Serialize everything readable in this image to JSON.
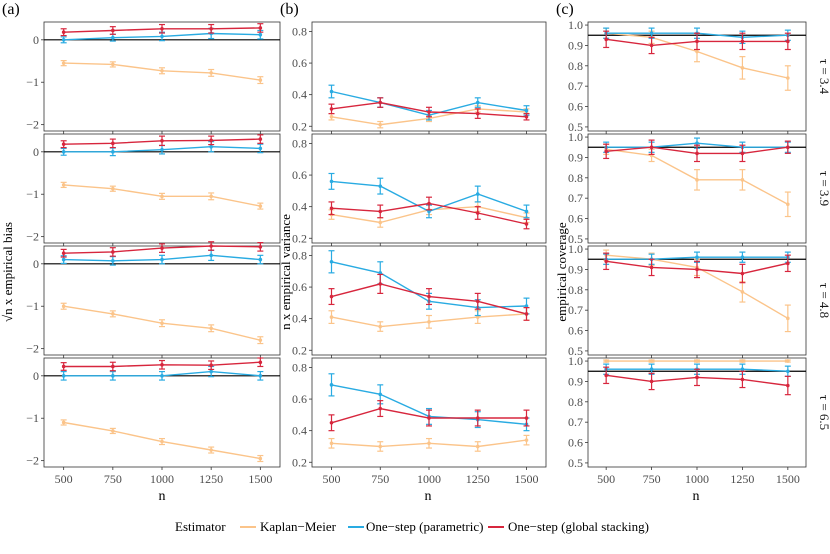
{
  "chart_data": {
    "type": "line",
    "panel_labels": [
      "(a)",
      "(b)",
      "(c)"
    ],
    "row_labels": [
      "τ = 3.4",
      "τ = 3.9",
      "τ = 4.8",
      "τ = 6.5"
    ],
    "x": [
      500,
      750,
      1000,
      1250,
      1500
    ],
    "x_ticks": [
      "500",
      "750",
      "1000",
      "1250",
      "1500"
    ],
    "xlabel": "n",
    "columns": [
      {
        "ylabel": "√n x empirical bias",
        "ylim": [
          -2.15,
          0.42
        ],
        "ticks": [
          0,
          -1,
          -2
        ],
        "tick_labels": [
          "0",
          "−1",
          "−2"
        ],
        "ref_line": 0
      },
      {
        "ylabel": "n x empirical variance",
        "ylim": [
          0.17,
          0.86
        ],
        "ticks": [
          0.2,
          0.4,
          0.6,
          0.8
        ],
        "tick_labels": [
          "0.2",
          "0.4",
          "0.6",
          "0.8"
        ],
        "ref_line": null
      },
      {
        "ylabel": "empirical coverage",
        "ylim": [
          0.48,
          1.015
        ],
        "ticks": [
          0.5,
          0.6,
          0.7,
          0.8,
          0.9,
          1.0
        ],
        "tick_labels": [
          "0.5",
          "0.6",
          "0.7",
          "0.8",
          "0.9",
          "1.0"
        ],
        "ref_line": 0.95
      }
    ],
    "series_info": [
      {
        "name": "Kaplan−Meier",
        "color": "#fbc48a"
      },
      {
        "name": "One−step (parametric)",
        "color": "#29abe2"
      },
      {
        "name": "One−step (global stacking)",
        "color": "#d7263d"
      }
    ],
    "legend": {
      "title": "Estimator",
      "position": "bottom"
    },
    "panels": [
      [
        {
          "series": [
            {
              "values": [
                -0.55,
                -0.58,
                -0.73,
                -0.78,
                -0.95
              ],
              "err": [
                0.06,
                0.06,
                0.07,
                0.08,
                0.08
              ]
            },
            {
              "values": [
                0.0,
                0.05,
                0.08,
                0.15,
                0.12
              ],
              "err": [
                0.07,
                0.08,
                0.1,
                0.12,
                0.1
              ]
            },
            {
              "values": [
                0.18,
                0.22,
                0.26,
                0.26,
                0.28
              ],
              "err": [
                0.08,
                0.09,
                0.1,
                0.1,
                0.1
              ]
            }
          ]
        },
        {
          "series": [
            {
              "values": [
                0.26,
                0.21,
                0.25,
                0.31,
                0.29
              ],
              "err": [
                0.02,
                0.02,
                0.02,
                0.02,
                0.02
              ]
            },
            {
              "values": [
                0.42,
                0.35,
                0.27,
                0.35,
                0.3
              ],
              "err": [
                0.04,
                0.03,
                0.03,
                0.03,
                0.03
              ]
            },
            {
              "values": [
                0.31,
                0.35,
                0.29,
                0.28,
                0.26
              ],
              "err": [
                0.03,
                0.03,
                0.03,
                0.03,
                0.02
              ]
            }
          ]
        },
        {
          "series": [
            {
              "values": [
                0.96,
                0.94,
                0.87,
                0.79,
                0.74
              ],
              "err": [
                0.025,
                0.03,
                0.05,
                0.055,
                0.06
              ]
            },
            {
              "values": [
                0.96,
                0.96,
                0.96,
                0.94,
                0.95
              ],
              "err": [
                0.025,
                0.025,
                0.025,
                0.03,
                0.025
              ]
            },
            {
              "values": [
                0.93,
                0.9,
                0.92,
                0.92,
                0.92
              ],
              "err": [
                0.04,
                0.04,
                0.04,
                0.04,
                0.04
              ]
            }
          ]
        }
      ],
      [
        {
          "series": [
            {
              "values": [
                -0.78,
                -0.87,
                -1.05,
                -1.05,
                -1.28
              ],
              "err": [
                0.06,
                0.06,
                0.07,
                0.08,
                0.07
              ]
            },
            {
              "values": [
                0.0,
                0.0,
                0.05,
                0.12,
                0.08
              ],
              "err": [
                0.08,
                0.09,
                0.1,
                0.12,
                0.1
              ]
            },
            {
              "values": [
                0.18,
                0.2,
                0.26,
                0.27,
                0.3
              ],
              "err": [
                0.08,
                0.1,
                0.11,
                0.1,
                0.1
              ]
            }
          ]
        },
        {
          "series": [
            {
              "values": [
                0.35,
                0.3,
                0.38,
                0.4,
                0.33
              ],
              "err": [
                0.03,
                0.03,
                0.03,
                0.03,
                0.03
              ]
            },
            {
              "values": [
                0.56,
                0.53,
                0.37,
                0.48,
                0.37
              ],
              "err": [
                0.05,
                0.05,
                0.04,
                0.05,
                0.04
              ]
            },
            {
              "values": [
                0.39,
                0.37,
                0.42,
                0.36,
                0.29
              ],
              "err": [
                0.04,
                0.04,
                0.04,
                0.04,
                0.03
              ]
            }
          ]
        },
        {
          "series": [
            {
              "values": [
                0.94,
                0.91,
                0.79,
                0.79,
                0.67
              ],
              "err": [
                0.025,
                0.03,
                0.05,
                0.05,
                0.06
              ]
            },
            {
              "values": [
                0.95,
                0.95,
                0.97,
                0.95,
                0.95
              ],
              "err": [
                0.025,
                0.025,
                0.025,
                0.025,
                0.025
              ]
            },
            {
              "values": [
                0.93,
                0.95,
                0.92,
                0.92,
                0.95
              ],
              "err": [
                0.035,
                0.035,
                0.04,
                0.04,
                0.03
              ]
            }
          ]
        }
      ],
      [
        {
          "series": [
            {
              "values": [
                -1.0,
                -1.18,
                -1.4,
                -1.52,
                -1.8
              ],
              "err": [
                0.07,
                0.07,
                0.08,
                0.08,
                0.08
              ]
            },
            {
              "values": [
                0.1,
                0.07,
                0.1,
                0.2,
                0.1
              ],
              "err": [
                0.09,
                0.1,
                0.1,
                0.12,
                0.1
              ]
            },
            {
              "values": [
                0.25,
                0.28,
                0.37,
                0.42,
                0.4
              ],
              "err": [
                0.09,
                0.1,
                0.1,
                0.1,
                0.1
              ]
            }
          ]
        },
        {
          "series": [
            {
              "values": [
                0.41,
                0.35,
                0.38,
                0.41,
                0.43
              ],
              "err": [
                0.04,
                0.03,
                0.04,
                0.04,
                0.04
              ]
            },
            {
              "values": [
                0.76,
                0.69,
                0.51,
                0.47,
                0.48
              ],
              "err": [
                0.07,
                0.07,
                0.05,
                0.05,
                0.05
              ]
            },
            {
              "values": [
                0.54,
                0.62,
                0.54,
                0.51,
                0.43
              ],
              "err": [
                0.05,
                0.06,
                0.05,
                0.05,
                0.04
              ]
            }
          ]
        },
        {
          "series": [
            {
              "values": [
                0.97,
                0.95,
                0.91,
                0.79,
                0.66
              ],
              "err": [
                0.025,
                0.03,
                0.04,
                0.05,
                0.065
              ]
            },
            {
              "values": [
                0.95,
                0.95,
                0.96,
                0.96,
                0.96
              ],
              "err": [
                0.025,
                0.025,
                0.025,
                0.025,
                0.025
              ]
            },
            {
              "values": [
                0.94,
                0.91,
                0.9,
                0.88,
                0.93
              ],
              "err": [
                0.04,
                0.04,
                0.04,
                0.045,
                0.04
              ]
            }
          ]
        }
      ],
      [
        {
          "series": [
            {
              "values": [
                -1.1,
                -1.3,
                -1.55,
                -1.75,
                -1.95
              ],
              "err": [
                0.06,
                0.06,
                0.07,
                0.07,
                0.07
              ]
            },
            {
              "values": [
                0.0,
                0.0,
                0.0,
                0.1,
                0.0
              ],
              "err": [
                0.1,
                0.1,
                0.1,
                0.12,
                0.1
              ]
            },
            {
              "values": [
                0.22,
                0.22,
                0.26,
                0.25,
                0.32
              ],
              "err": [
                0.09,
                0.1,
                0.1,
                0.1,
                0.1
              ]
            }
          ]
        },
        {
          "series": [
            {
              "values": [
                0.32,
                0.3,
                0.32,
                0.3,
                0.34
              ],
              "err": [
                0.03,
                0.03,
                0.03,
                0.03,
                0.03
              ]
            },
            {
              "values": [
                0.69,
                0.63,
                0.49,
                0.47,
                0.44
              ],
              "err": [
                0.07,
                0.06,
                0.05,
                0.05,
                0.04
              ]
            },
            {
              "values": [
                0.45,
                0.54,
                0.48,
                0.48,
                0.48
              ],
              "err": [
                0.05,
                0.05,
                0.05,
                0.05,
                0.05
              ]
            }
          ]
        },
        {
          "series": [
            {
              "values": [
                1.0,
                1.0,
                1.0,
                1.0,
                1.0
              ],
              "err": [
                0.005,
                0.005,
                0.005,
                0.005,
                0.005
              ]
            },
            {
              "values": [
                0.96,
                0.96,
                0.96,
                0.96,
                0.95
              ],
              "err": [
                0.025,
                0.025,
                0.025,
                0.025,
                0.025
              ]
            },
            {
              "values": [
                0.93,
                0.9,
                0.92,
                0.91,
                0.88
              ],
              "err": [
                0.04,
                0.04,
                0.04,
                0.04,
                0.045
              ]
            }
          ]
        }
      ]
    ]
  }
}
